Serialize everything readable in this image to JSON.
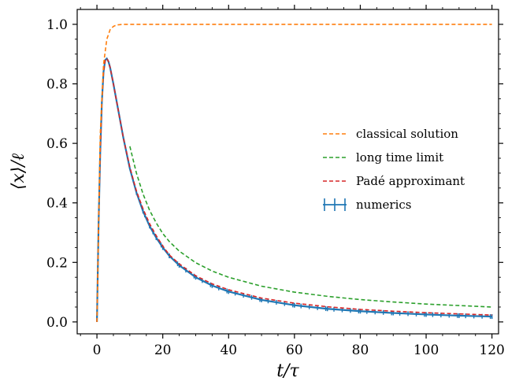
{
  "chart_data": {
    "type": "line",
    "xlabel": "t/τ",
    "ylabel": "⟨x⟩/ℓ",
    "xlim": [
      -6,
      122
    ],
    "ylim": [
      -0.04,
      1.05
    ],
    "xticks": [
      0,
      20,
      40,
      60,
      80,
      100,
      120
    ],
    "yticks": [
      0.0,
      0.2,
      0.4,
      0.6,
      0.8,
      1.0
    ],
    "xtick_labels": [
      "0",
      "20",
      "40",
      "60",
      "80",
      "100",
      "120"
    ],
    "ytick_labels": [
      "0.0",
      "0.2",
      "0.4",
      "0.6",
      "0.8",
      "1.0"
    ],
    "grid": false,
    "legend_position": "right",
    "series": [
      {
        "name": "classical solution",
        "color": "#ff7f0e",
        "style": "dashed",
        "x": [
          0,
          1,
          2,
          3,
          4,
          5,
          6,
          7,
          8,
          9,
          10,
          20,
          40,
          60,
          80,
          100,
          120
        ],
        "y": [
          0.0,
          0.63,
          0.865,
          0.95,
          0.982,
          0.993,
          0.998,
          0.999,
          1.0,
          1.0,
          1.0,
          1.0,
          1.0,
          1.0,
          1.0,
          1.0,
          1.0
        ]
      },
      {
        "name": "long time limit",
        "color": "#2ca02c",
        "style": "dashed",
        "x": [
          10,
          12,
          14,
          16,
          18,
          20,
          22,
          25,
          30,
          35,
          40,
          50,
          60,
          70,
          80,
          90,
          100,
          110,
          120
        ],
        "y": [
          0.59,
          0.5,
          0.43,
          0.375,
          0.333,
          0.297,
          0.27,
          0.238,
          0.199,
          0.171,
          0.15,
          0.12,
          0.1,
          0.086,
          0.075,
          0.067,
          0.06,
          0.055,
          0.05
        ]
      },
      {
        "name": "Padé approximant",
        "color": "#d62728",
        "style": "dashed",
        "x": [
          0,
          0.5,
          1,
          1.5,
          2,
          2.5,
          3,
          3.5,
          4,
          5,
          6,
          7,
          8,
          10,
          12,
          14,
          16,
          18,
          20,
          22,
          25,
          30,
          35,
          40,
          50,
          60,
          70,
          80,
          90,
          100,
          110,
          120
        ],
        "y": [
          0.0,
          0.33,
          0.57,
          0.74,
          0.84,
          0.88,
          0.885,
          0.875,
          0.855,
          0.8,
          0.74,
          0.68,
          0.62,
          0.52,
          0.44,
          0.38,
          0.33,
          0.29,
          0.255,
          0.225,
          0.195,
          0.155,
          0.128,
          0.108,
          0.08,
          0.063,
          0.051,
          0.042,
          0.036,
          0.031,
          0.027,
          0.023
        ]
      },
      {
        "name": "numerics",
        "color": "#1f77b4",
        "style": "solid-errorbar",
        "x": [
          0,
          0.5,
          1,
          1.5,
          2,
          2.5,
          3,
          3.5,
          4,
          5,
          6,
          7,
          8,
          10,
          12,
          14,
          16,
          18,
          20,
          22,
          25,
          30,
          35,
          40,
          50,
          60,
          70,
          80,
          90,
          100,
          110,
          120
        ],
        "y": [
          0.0,
          0.33,
          0.57,
          0.74,
          0.84,
          0.88,
          0.885,
          0.875,
          0.855,
          0.8,
          0.74,
          0.68,
          0.62,
          0.515,
          0.435,
          0.372,
          0.322,
          0.283,
          0.25,
          0.222,
          0.19,
          0.15,
          0.122,
          0.102,
          0.074,
          0.056,
          0.044,
          0.036,
          0.03,
          0.025,
          0.021,
          0.018
        ]
      }
    ]
  }
}
